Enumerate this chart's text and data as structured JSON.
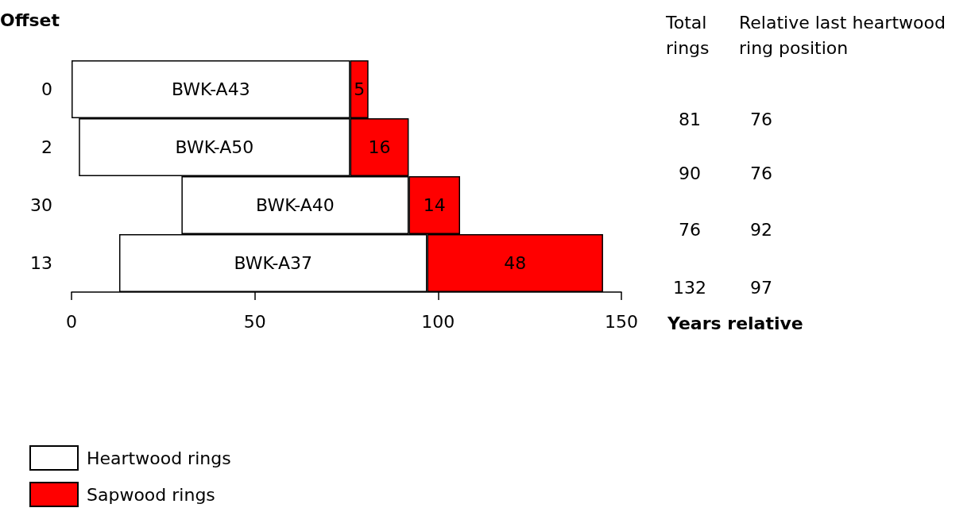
{
  "chart_data": {
    "type": "bar",
    "orientation": "horizontal",
    "ylabel": "Offset",
    "xlabel": "Years relative",
    "categories": [
      "0",
      "2",
      "30",
      "13"
    ],
    "series": [
      {
        "name": "Heartwood rings",
        "color": "#ffffff",
        "base": [
          0,
          2,
          30,
          13
        ],
        "values": [
          76,
          74,
          62,
          84
        ],
        "value_labels": [
          "BWK-A43",
          "BWK-A50",
          "BWK-A40",
          "BWK-A37"
        ]
      },
      {
        "name": "Sapwood rings",
        "color": "#ff0000",
        "base": [
          76,
          76,
          92,
          97
        ],
        "values": [
          5,
          16,
          14,
          48
        ],
        "value_labels": [
          "5",
          "16",
          "14",
          "48"
        ]
      }
    ],
    "xlim": [
      0,
      150
    ],
    "xticks": [
      0,
      50,
      100,
      150
    ],
    "grid": false,
    "legend": "bottom left",
    "annotations": [
      "Total\nrings",
      "Relative last heartwood\nring position",
      "81",
      "76",
      "90",
      "76",
      "76",
      "92",
      "132",
      "97"
    ]
  }
}
